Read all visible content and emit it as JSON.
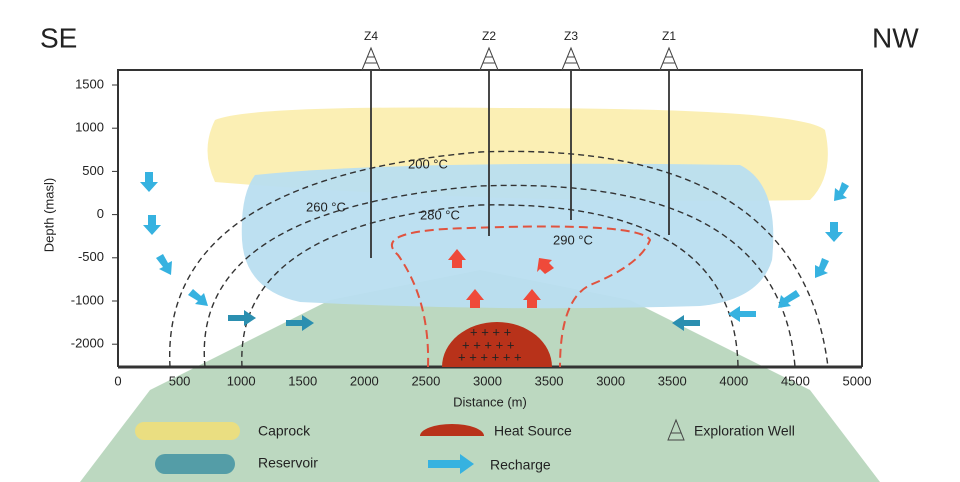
{
  "diagram": {
    "side_labels": {
      "left": "SE",
      "right": "NW"
    },
    "wells": [
      "Z4",
      "Z2",
      "Z3",
      "Z1"
    ],
    "y_axis": {
      "title": "Depth (masl)",
      "ticks": [
        "1500",
        "1000",
        "500",
        "0",
        "-500",
        "-1000",
        "-2000"
      ]
    },
    "x_axis": {
      "title": "Distance (m)",
      "ticks": [
        "0",
        "500",
        "1000",
        "1500",
        "2000",
        "2500",
        "3000",
        "3500",
        "3000",
        "3500",
        "4000",
        "4500",
        "5000"
      ]
    },
    "isotherms": [
      "200 °C",
      "260 °C",
      "280 °C",
      "290 °C"
    ],
    "legend": [
      "Caprock",
      "Heat Source",
      "Exploration Well",
      "Reservoir",
      "Recharge"
    ]
  }
}
